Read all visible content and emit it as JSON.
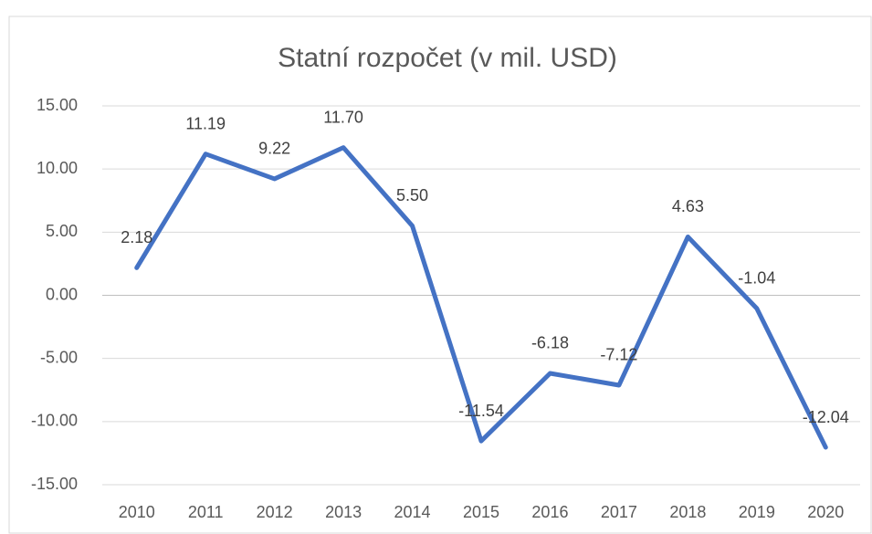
{
  "chart_data": {
    "type": "line",
    "title": "Statní rozpočet (v mil. USD)",
    "categories": [
      "2010",
      "2011",
      "2012",
      "2013",
      "2014",
      "2015",
      "2016",
      "2017",
      "2018",
      "2019",
      "2020"
    ],
    "series": [
      {
        "name": "Statní rozpočet",
        "color": "#4472c4",
        "values": [
          2.18,
          11.19,
          9.22,
          11.7,
          5.5,
          -11.54,
          -6.18,
          -7.12,
          4.63,
          -1.04,
          -12.04
        ],
        "value_labels": [
          "2.18",
          "11.19",
          "9.22",
          "11.70",
          "5.50",
          "-11.54",
          "-6.18",
          "-7.12",
          "4.63",
          "-1.04",
          "-12.04"
        ]
      }
    ],
    "ylim": [
      -15,
      15
    ],
    "yticks": [
      {
        "value": -15,
        "label": "-15.00"
      },
      {
        "value": -10,
        "label": "-10.00"
      },
      {
        "value": -5,
        "label": "-5.00"
      },
      {
        "value": 0,
        "label": "0.00"
      },
      {
        "value": 5,
        "label": "5.00"
      },
      {
        "value": 10,
        "label": "10.00"
      },
      {
        "value": 15,
        "label": "15.00"
      }
    ],
    "grid": true
  }
}
